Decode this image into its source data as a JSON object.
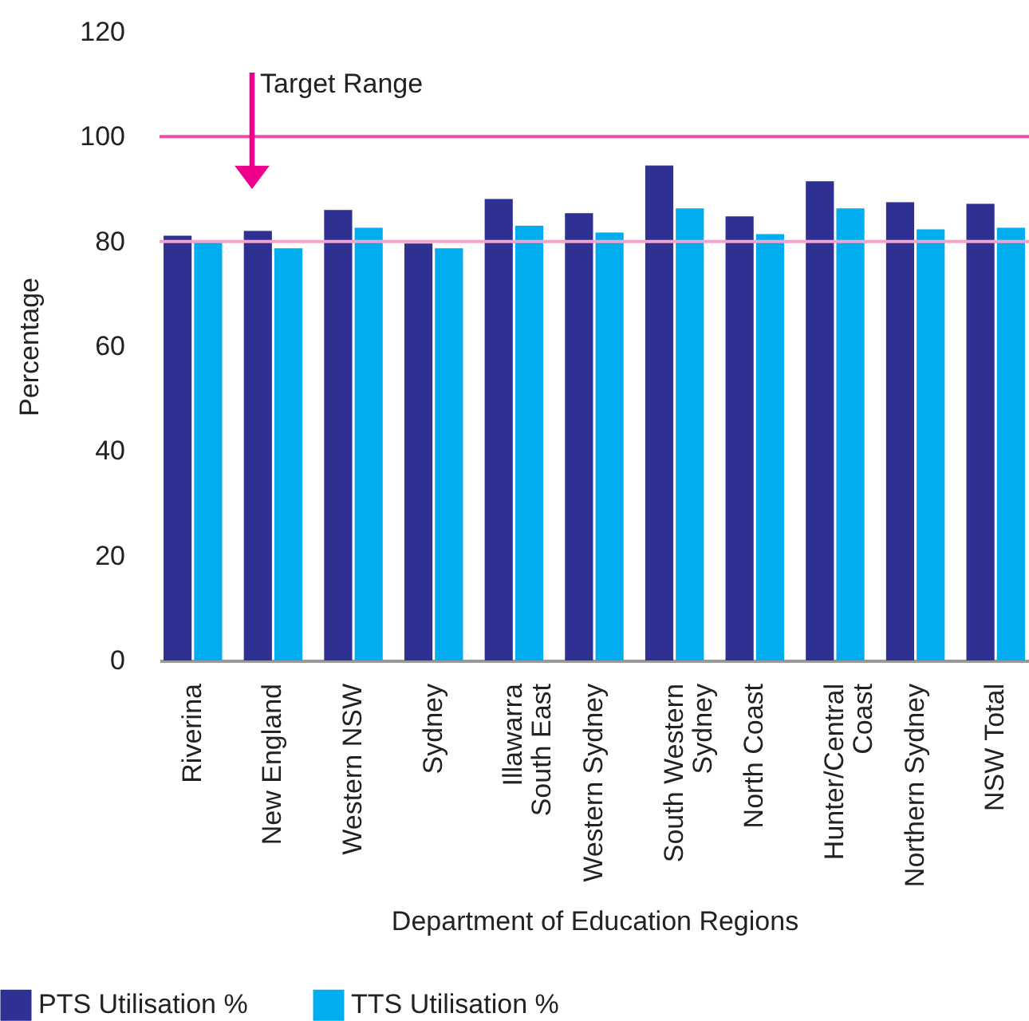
{
  "chart_data": {
    "type": "bar",
    "xlabel": "Department of Education Regions",
    "ylabel": "Percentage",
    "categories": [
      "Riverina",
      "New England",
      "Western NSW",
      "Sydney",
      "Illawarra South East",
      "Western Sydney",
      "South Western Sydney",
      "North Coast",
      "Hunter/Central Coast",
      "Northern Sydney",
      "NSW Total"
    ],
    "series": [
      {
        "name": "PTS Utilisation %",
        "color": "#2e3192",
        "values": [
          81.1,
          82.0,
          86.0,
          79.6,
          88.1,
          85.4,
          94.5,
          84.8,
          91.5,
          87.5,
          87.2
        ]
      },
      {
        "name": "TTS Utilisation %",
        "color": "#00aeef",
        "values": [
          80.2,
          78.7,
          82.6,
          78.7,
          83.0,
          81.7,
          86.3,
          81.4,
          86.3,
          82.3,
          82.6
        ]
      }
    ],
    "ylim": [
      0,
      120
    ],
    "yticks": [
      0,
      20,
      40,
      60,
      80,
      100,
      120
    ],
    "ref_lines": [
      {
        "axis": "y",
        "value": 80,
        "color": "#f5a3cc"
      },
      {
        "axis": "y",
        "value": 100,
        "color": "#ee4fa0"
      }
    ],
    "annotations": [
      "Target Range"
    ],
    "legend": "bottom",
    "grid": false
  }
}
